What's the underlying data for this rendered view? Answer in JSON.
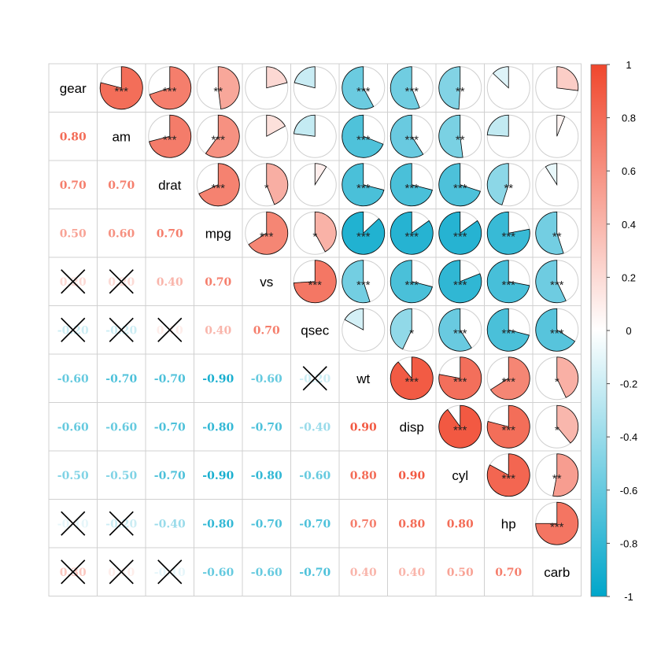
{
  "chart_data": {
    "type": "heatmap",
    "subtype": "correlogram-mixed",
    "upper_method": "pie",
    "lower_method": "number",
    "insignificant_marker": "cross",
    "variables": [
      "gear",
      "am",
      "drat",
      "mpg",
      "vs",
      "qsec",
      "wt",
      "disp",
      "cyl",
      "hp",
      "carb"
    ],
    "lower_values": [
      [],
      [
        0.8
      ],
      [
        0.7,
        0.7
      ],
      [
        0.5,
        0.6,
        0.7
      ],
      [
        0.2,
        0.2,
        0.4,
        0.7
      ],
      [
        -0.2,
        -0.2,
        0.1,
        0.4,
        0.7
      ],
      [
        -0.6,
        -0.7,
        -0.7,
        -0.9,
        -0.6,
        -0.2
      ],
      [
        -0.6,
        -0.6,
        -0.7,
        -0.8,
        -0.7,
        -0.4,
        0.9
      ],
      [
        -0.5,
        -0.5,
        -0.7,
        -0.9,
        -0.8,
        -0.6,
        0.8,
        0.9
      ],
      [
        -0.1,
        -0.2,
        -0.4,
        -0.8,
        -0.7,
        -0.7,
        0.7,
        0.8,
        0.8
      ],
      [
        0.3,
        0.1,
        -0.1,
        -0.6,
        -0.6,
        -0.7,
        0.4,
        0.4,
        0.5,
        0.7
      ]
    ],
    "lower_labels": [
      [],
      [
        "0.80"
      ],
      [
        "0.70",
        "0.70"
      ],
      [
        "0.50",
        "0.60",
        "0.70"
      ],
      [
        "0.20",
        "0.20",
        "0.40",
        "0.70"
      ],
      [
        "-0.20",
        "-0.20",
        "0.10",
        "0.40",
        "0.70"
      ],
      [
        "-0.60",
        "-0.70",
        "-0.70",
        "-0.90",
        "-0.60",
        "-0.20"
      ],
      [
        "-0.60",
        "-0.60",
        "-0.70",
        "-0.80",
        "-0.70",
        "-0.40",
        "0.90"
      ],
      [
        "-0.50",
        "-0.50",
        "-0.70",
        "-0.90",
        "-0.80",
        "-0.60",
        "0.80",
        "0.90"
      ],
      [
        "-0.10",
        "-0.20",
        "-0.40",
        "-0.80",
        "-0.70",
        "-0.70",
        "0.70",
        "0.80",
        "0.80"
      ],
      [
        "0.30",
        "0.10",
        "-0.10",
        "-0.60",
        "-0.60",
        "-0.70",
        "0.40",
        "0.40",
        "0.50",
        "0.70"
      ]
    ],
    "upper_values": [
      [
        0.79,
        0.7,
        0.48,
        0.21,
        -0.21,
        -0.58,
        -0.56,
        -0.49,
        -0.13,
        0.27
      ],
      [
        0.71,
        0.6,
        0.17,
        -0.23,
        -0.69,
        -0.59,
        -0.52,
        -0.24,
        0.06
      ],
      [
        0.68,
        0.44,
        0.09,
        -0.71,
        -0.71,
        -0.7,
        -0.45,
        -0.09
      ],
      [
        0.66,
        0.42,
        -0.87,
        -0.85,
        -0.85,
        -0.78,
        -0.55
      ],
      [
        0.74,
        -0.55,
        -0.71,
        -0.81,
        -0.72,
        -0.57
      ],
      [
        -0.17,
        -0.43,
        -0.59,
        -0.71,
        -0.66
      ],
      [
        0.89,
        0.78,
        0.66,
        0.43
      ],
      [
        0.9,
        0.79,
        0.39
      ],
      [
        0.83,
        0.53
      ],
      [
        0.75
      ]
    ],
    "upper_stars": [
      [
        "***",
        "***",
        "**",
        "",
        "",
        "***",
        "***",
        "**",
        "",
        ""
      ],
      [
        "***",
        "***",
        "",
        "",
        "***",
        "***",
        "**",
        "",
        ""
      ],
      [
        "***",
        "*",
        "",
        "***",
        "***",
        "***",
        "**",
        ""
      ],
      [
        "***",
        "*",
        "***",
        "***",
        "***",
        "***",
        "**"
      ],
      [
        "***",
        "***",
        "***",
        "***",
        "***",
        "***"
      ],
      [
        "",
        "*",
        "***",
        "***",
        "***"
      ],
      [
        "***",
        "***",
        "***",
        "*"
      ],
      [
        "***",
        "***",
        "*"
      ],
      [
        "***",
        "**"
      ],
      [
        "***"
      ]
    ],
    "insignificant_lower": [
      [
        4,
        0
      ],
      [
        4,
        1
      ],
      [
        5,
        0
      ],
      [
        5,
        1
      ],
      [
        5,
        2
      ],
      [
        6,
        5
      ],
      [
        9,
        0
      ],
      [
        9,
        1
      ],
      [
        10,
        0
      ],
      [
        10,
        1
      ],
      [
        10,
        2
      ]
    ],
    "colorbar": {
      "ticks": [
        "1",
        "0.8",
        "0.6",
        "0.4",
        "0.2",
        "0",
        "-0.2",
        "-0.4",
        "-0.6",
        "-0.8",
        "-1"
      ],
      "range": [
        -1,
        1
      ],
      "colors": {
        "low": "#00A6CA",
        "mid": "#FFFFFF",
        "high": "#F0472D"
      }
    }
  }
}
